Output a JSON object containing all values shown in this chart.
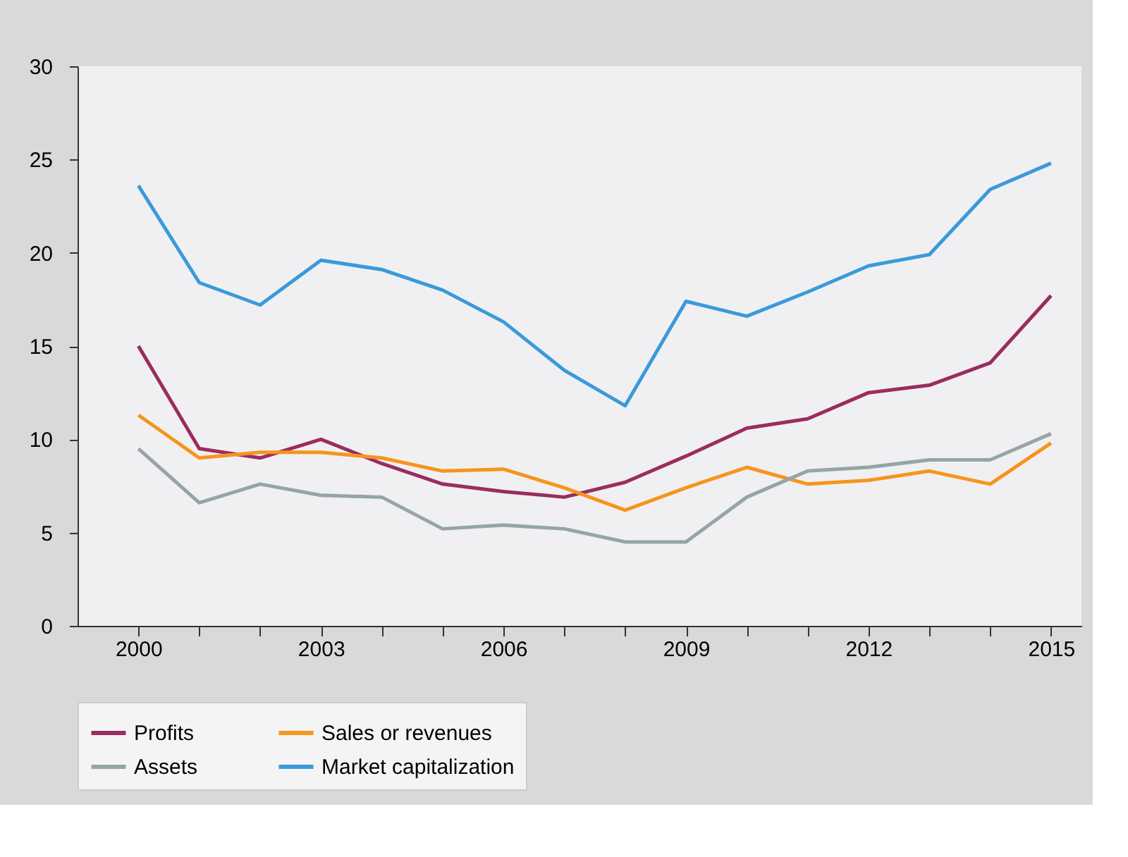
{
  "chart_data": {
    "type": "line",
    "x": [
      2000,
      2001,
      2002,
      2003,
      2004,
      2005,
      2006,
      2007,
      2008,
      2009,
      2010,
      2011,
      2012,
      2013,
      2014,
      2015
    ],
    "series": [
      {
        "name": "Profits",
        "color": "#9b2c5e",
        "values": [
          15.0,
          9.5,
          9.0,
          10.0,
          8.7,
          7.6,
          7.2,
          6.9,
          7.7,
          9.1,
          10.6,
          11.1,
          12.5,
          12.9,
          14.1,
          17.7
        ]
      },
      {
        "name": "Sales or revenues",
        "color": "#f7941d",
        "values": [
          11.3,
          9.0,
          9.3,
          9.3,
          9.0,
          8.3,
          8.4,
          7.4,
          6.2,
          7.4,
          8.5,
          7.6,
          7.8,
          8.3,
          7.6,
          9.8
        ]
      },
      {
        "name": "Assets",
        "color": "#95a5a6",
        "values": [
          9.5,
          6.6,
          7.6,
          7.0,
          6.9,
          5.2,
          5.4,
          5.2,
          4.5,
          4.5,
          6.9,
          8.3,
          8.5,
          8.9,
          8.9,
          10.3
        ]
      },
      {
        "name": "Market capitalization",
        "color": "#3a9ad9",
        "values": [
          23.6,
          18.4,
          17.2,
          19.6,
          19.1,
          18.0,
          16.3,
          13.7,
          11.8,
          17.4,
          16.6,
          17.9,
          19.3,
          19.9,
          23.4,
          24.8
        ]
      }
    ],
    "xlim": [
      1999,
      2015.5
    ],
    "xticks": [
      2000,
      {
        "value": 2001,
        "label": null
      },
      {
        "value": 2002,
        "label": null
      },
      2003,
      {
        "value": 2004,
        "label": null
      },
      {
        "value": 2005,
        "label": null
      },
      2006,
      {
        "value": 2007,
        "label": null
      },
      {
        "value": 2008,
        "label": null
      },
      2009,
      {
        "value": 2010,
        "label": null
      },
      {
        "value": 2011,
        "label": null
      },
      2012,
      {
        "value": 2013,
        "label": null
      },
      {
        "value": 2014,
        "label": null
      },
      2015
    ],
    "ylim": [
      0,
      30
    ],
    "yticks": [
      0,
      5,
      10,
      15,
      20,
      25,
      30
    ],
    "grid": false,
    "legend": "bottom",
    "line_style": "solid",
    "marker": "none"
  }
}
